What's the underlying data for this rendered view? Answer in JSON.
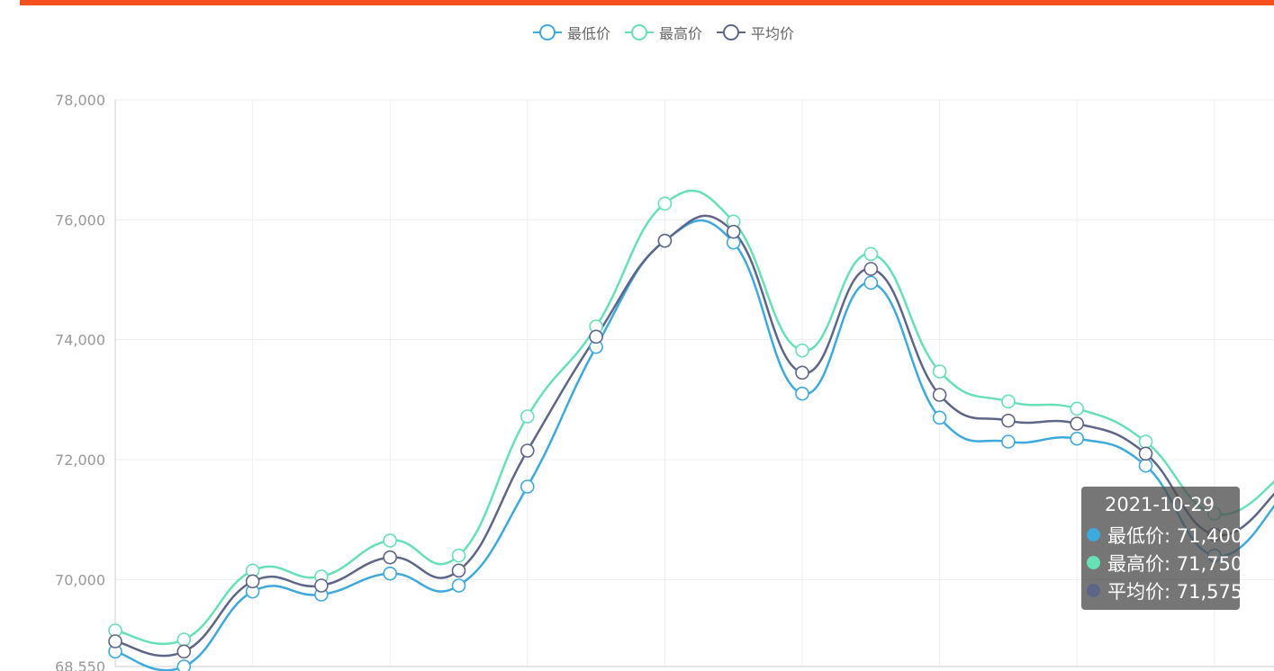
{
  "chart_data": {
    "type": "line",
    "smooth": true,
    "ylim": [
      68550,
      78000
    ],
    "y_ticks": [
      "68,550",
      "70,000",
      "72,000",
      "74,000",
      "76,000",
      "78,000"
    ],
    "grid": true,
    "legend_position": "top-center",
    "series": [
      {
        "name": "最低价",
        "color": "#3ea9dc",
        "values": [
          68800,
          68550,
          69800,
          69750,
          70100,
          69900,
          71550,
          73880,
          75650,
          75620,
          73100,
          74950,
          72700,
          72300,
          72350,
          71900,
          70400,
          71400
        ]
      },
      {
        "name": "最高价",
        "color": "#66e0b4",
        "values": [
          69150,
          69000,
          70150,
          70050,
          70650,
          70400,
          72720,
          74220,
          76270,
          75970,
          73820,
          75430,
          73470,
          72970,
          72850,
          72300,
          71100,
          71750
        ]
      },
      {
        "name": "平均价",
        "color": "#5e6688",
        "values": [
          68970,
          68800,
          69970,
          69900,
          70370,
          70150,
          72150,
          74050,
          75650,
          75800,
          73450,
          75180,
          73080,
          72650,
          72600,
          72100,
          70750,
          71575
        ]
      }
    ]
  },
  "tooltip": {
    "date": "2021-10-29",
    "rows": [
      {
        "label": "最低价: 71,400",
        "color": "#3ea9dc"
      },
      {
        "label": "最高价: 71,750",
        "color": "#66e0b4"
      },
      {
        "label": "平均价: 71,575",
        "color": "#5e6688"
      }
    ]
  },
  "colors": {
    "accent": "#f4511e"
  }
}
